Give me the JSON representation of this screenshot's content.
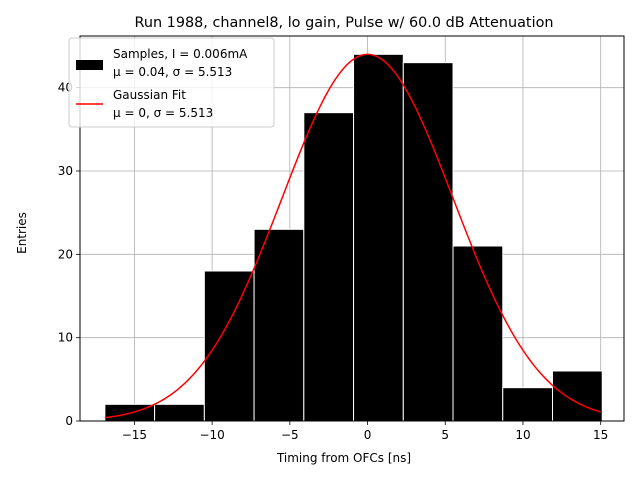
{
  "chart_data": {
    "type": "bar",
    "title": "Run 1988, channel8, lo gain, Pulse w/ 60.0 dB Attenuation",
    "xlabel": "Timing from OFCs [ns]",
    "ylabel": "Entries",
    "xlim": [
      -18.5,
      16.5
    ],
    "ylim": [
      0,
      46.2
    ],
    "xticks": [
      -15,
      -10,
      -5,
      0,
      5,
      10,
      15
    ],
    "xtick_labels": [
      "−15",
      "−10",
      "−5",
      "0",
      "5",
      "10",
      "15"
    ],
    "yticks": [
      0,
      10,
      20,
      30,
      40
    ],
    "ytick_labels": [
      "0",
      "10",
      "20",
      "30",
      "40"
    ],
    "grid": true,
    "legend_position": "top-left",
    "histogram": {
      "name_line1": "Samples, I = 0.006mA",
      "name_line2": "μ = 0.04, σ = 5.513",
      "color": "#000000",
      "bins": [
        {
          "x0": -16.9,
          "x1": -13.7,
          "count": 2
        },
        {
          "x0": -13.7,
          "x1": -10.5,
          "count": 2
        },
        {
          "x0": -10.5,
          "x1": -7.3,
          "count": 18
        },
        {
          "x0": -7.3,
          "x1": -4.1,
          "count": 23
        },
        {
          "x0": -4.1,
          "x1": -0.9,
          "count": 37
        },
        {
          "x0": -0.9,
          "x1": 2.3,
          "count": 44
        },
        {
          "x0": 2.3,
          "x1": 5.5,
          "count": 43
        },
        {
          "x0": 5.5,
          "x1": 8.7,
          "count": 21
        },
        {
          "x0": 8.7,
          "x1": 11.9,
          "count": 4
        },
        {
          "x0": 11.9,
          "x1": 15.1,
          "count": 6
        }
      ]
    },
    "fit": {
      "name_line1": "Gaussian Fit",
      "name_line2": "μ = 0, σ = 5.513",
      "color": "#ff0000",
      "mu": 0,
      "sigma": 5.513,
      "amplitude": 44,
      "x_range": [
        -16.9,
        15.0
      ]
    }
  }
}
